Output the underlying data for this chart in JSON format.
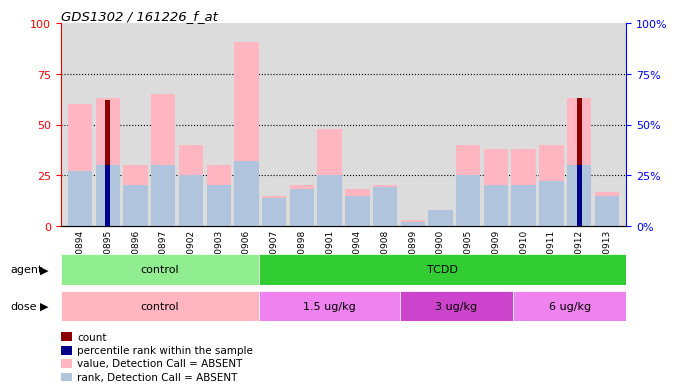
{
  "title": "GDS1302 / 161226_f_at",
  "samples": [
    "GSM60894",
    "GSM60895",
    "GSM60896",
    "GSM60897",
    "GSM60902",
    "GSM60903",
    "GSM60906",
    "GSM60907",
    "GSM60898",
    "GSM60901",
    "GSM60904",
    "GSM60908",
    "GSM60899",
    "GSM60900",
    "GSM60905",
    "GSM60909",
    "GSM60910",
    "GSM60911",
    "GSM60912",
    "GSM60913"
  ],
  "value_absent": [
    60,
    63,
    30,
    65,
    40,
    30,
    91,
    15,
    20,
    48,
    18,
    20,
    3,
    8,
    40,
    38,
    38,
    40,
    63,
    17
  ],
  "rank_absent": [
    27,
    30,
    20,
    30,
    25,
    20,
    32,
    14,
    18,
    25,
    15,
    19,
    2,
    8,
    25,
    20,
    20,
    22,
    30,
    15
  ],
  "count": [
    0,
    62,
    0,
    0,
    0,
    0,
    0,
    0,
    0,
    0,
    0,
    0,
    0,
    0,
    0,
    0,
    0,
    0,
    63,
    0
  ],
  "prank": [
    0,
    30,
    0,
    0,
    0,
    0,
    0,
    0,
    0,
    0,
    0,
    0,
    0,
    0,
    0,
    0,
    0,
    0,
    30,
    0
  ],
  "agent_groups": [
    {
      "label": "control",
      "start": 0,
      "end": 7,
      "color": "#90EE90"
    },
    {
      "label": "TCDD",
      "start": 7,
      "end": 20,
      "color": "#32CD32"
    }
  ],
  "dose_groups": [
    {
      "label": "control",
      "start": 0,
      "end": 7,
      "color": "#FFB6C1"
    },
    {
      "label": "1.5 ug/kg",
      "start": 7,
      "end": 12,
      "color": "#EE82EE"
    },
    {
      "label": "3 ug/kg",
      "start": 12,
      "end": 16,
      "color": "#CC44CC"
    },
    {
      "label": "6 ug/kg",
      "start": 16,
      "end": 20,
      "color": "#EE82EE"
    }
  ],
  "ylim": [
    0,
    100
  ],
  "grid_ticks": [
    25,
    50,
    75
  ],
  "bar_width": 0.4,
  "color_count": "#8B0000",
  "color_prank": "#00008B",
  "color_value_absent": "#FFB6C1",
  "color_rank_absent": "#B0C4DE",
  "legend_items": [
    {
      "color": "#8B0000",
      "label": "count"
    },
    {
      "color": "#00008B",
      "label": "percentile rank within the sample"
    },
    {
      "color": "#FFB6C1",
      "label": "value, Detection Call = ABSENT"
    },
    {
      "color": "#B0C4DE",
      "label": "rank, Detection Call = ABSENT"
    }
  ]
}
